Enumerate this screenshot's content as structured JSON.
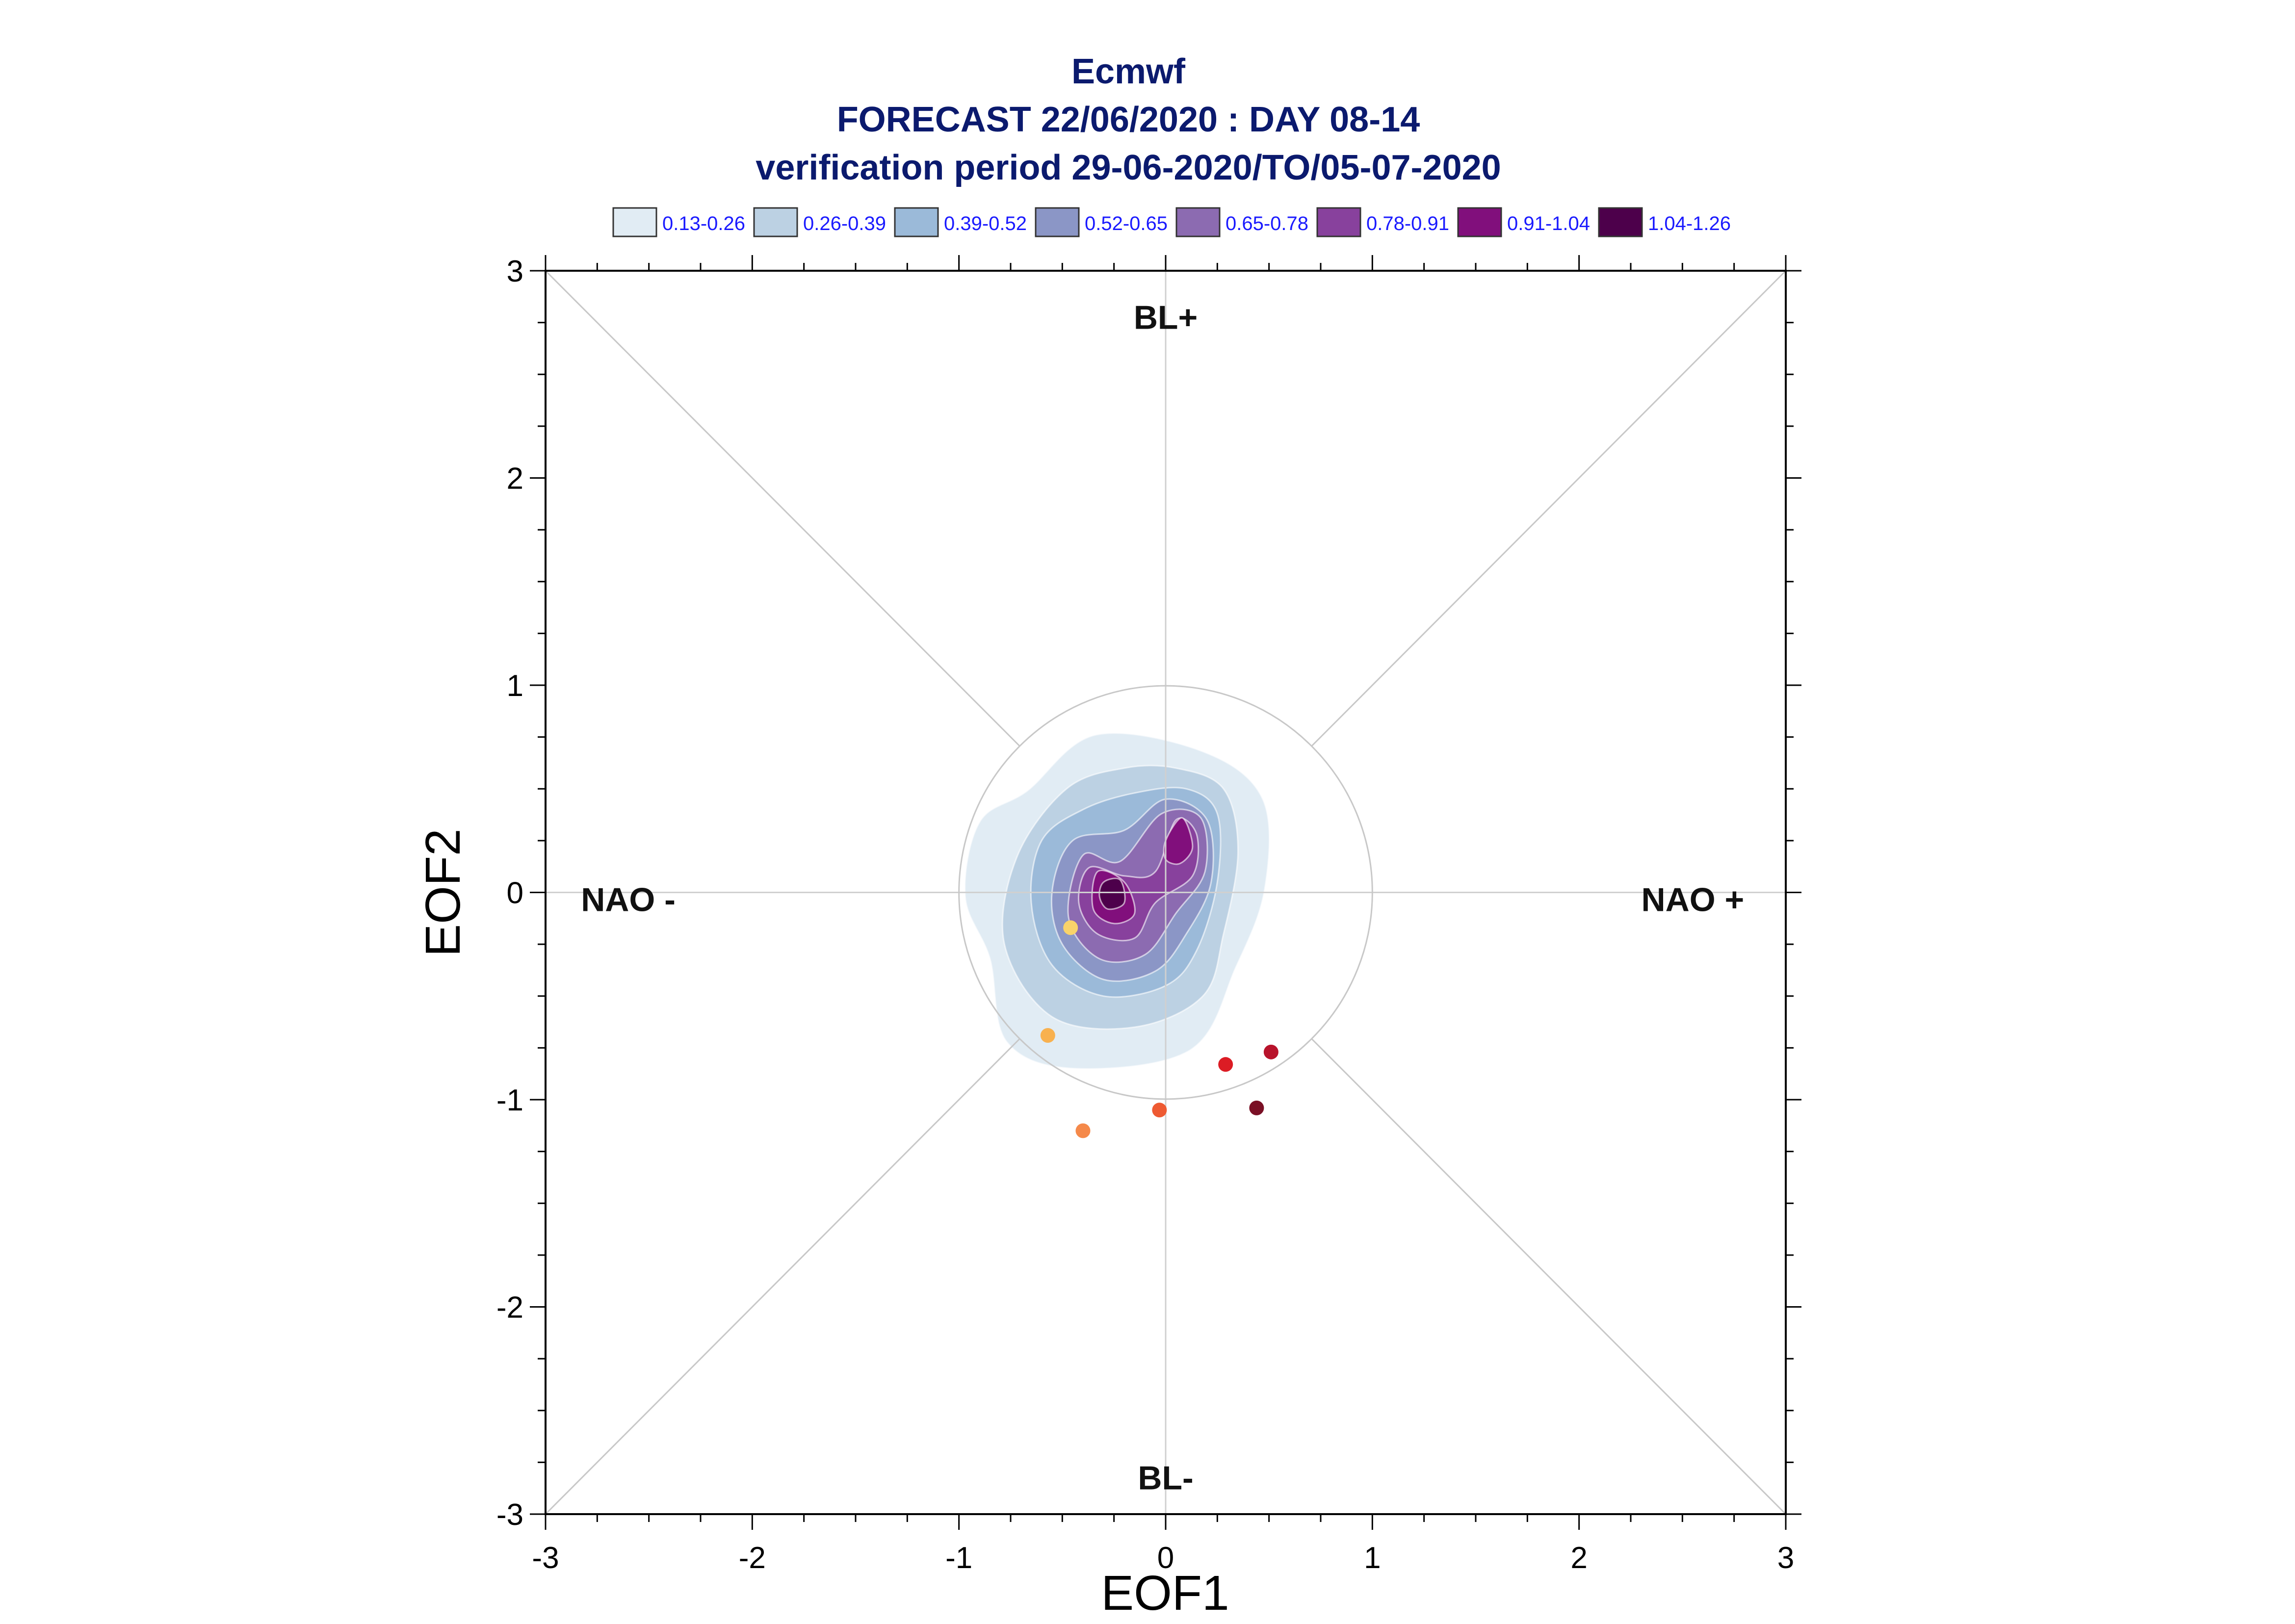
{
  "chart_data": {
    "type": "scatter",
    "title_lines": [
      "Ecmwf",
      "FORECAST 22/06/2020 : DAY 08-14",
      "verification period 29-06-2020/TO/05-07-2020"
    ],
    "xlabel": "EOF1",
    "ylabel": "EOF2",
    "xlim": [
      -3,
      3
    ],
    "ylim": [
      -3,
      3
    ],
    "xticks": [
      -3,
      -2,
      -1,
      0,
      1,
      2,
      3
    ],
    "yticks": [
      -3,
      -2,
      -1,
      0,
      1,
      2,
      3
    ],
    "xtick_labels": [
      "-3",
      "-2",
      "-1",
      "0",
      "1",
      "2",
      "3"
    ],
    "ytick_labels": [
      "-3",
      "-2",
      "-1",
      "0",
      "1",
      "2",
      "3"
    ],
    "regime_labels": [
      {
        "text": "BL+",
        "x": 0.0,
        "y": 2.72
      },
      {
        "text": "BL-",
        "x": 0.0,
        "y": -2.88
      },
      {
        "text": "NAO -",
        "x": -2.6,
        "y": -0.09
      },
      {
        "text": "NAO +",
        "x": 2.55,
        "y": -0.09
      }
    ],
    "reference_circle_radius": 1.0,
    "legend": {
      "placement": "top",
      "entries": [
        {
          "label": "0.13-0.26",
          "color": "#e1ecf4"
        },
        {
          "label": "0.26-0.39",
          "color": "#bcd1e3"
        },
        {
          "label": "0.39-0.52",
          "color": "#9bbad9"
        },
        {
          "label": "0.52-0.65",
          "color": "#8b96c6"
        },
        {
          "label": "0.65-0.78",
          "color": "#8c6bb1"
        },
        {
          "label": "0.78-0.91",
          "color": "#88419d"
        },
        {
          "label": "0.91-1.04",
          "color": "#810f7c"
        },
        {
          "label": "1.04-1.26",
          "color": "#4d004b"
        }
      ]
    },
    "density_contours": [
      {
        "level": "0.13-0.26",
        "color": "#e1ecf4",
        "points": [
          [
            -0.67,
            0.49
          ],
          [
            -0.34,
            0.76
          ],
          [
            0.18,
            0.68
          ],
          [
            0.47,
            0.45
          ],
          [
            0.48,
            0.02
          ],
          [
            0.34,
            -0.36
          ],
          [
            0.12,
            -0.76
          ],
          [
            -0.44,
            -0.85
          ],
          [
            -0.77,
            -0.72
          ],
          [
            -0.85,
            -0.32
          ],
          [
            -0.97,
            -0.02
          ],
          [
            -0.9,
            0.34
          ]
        ]
      },
      {
        "level": "0.26-0.39",
        "color": "#bcd1e3",
        "points": [
          [
            -0.72,
            0.17
          ],
          [
            -0.48,
            0.5
          ],
          [
            -0.2,
            0.6
          ],
          [
            0.05,
            0.6
          ],
          [
            0.28,
            0.5
          ],
          [
            0.35,
            0.2
          ],
          [
            0.28,
            -0.2
          ],
          [
            0.18,
            -0.5
          ],
          [
            -0.15,
            -0.65
          ],
          [
            -0.55,
            -0.6
          ],
          [
            -0.78,
            -0.25
          ]
        ]
      },
      {
        "level": "0.39-0.52",
        "color": "#9bbad9",
        "points": [
          [
            -0.6,
            0.25
          ],
          [
            -0.4,
            0.4
          ],
          [
            -0.15,
            0.48
          ],
          [
            0.1,
            0.5
          ],
          [
            0.25,
            0.38
          ],
          [
            0.25,
            0.05
          ],
          [
            0.15,
            -0.28
          ],
          [
            0.0,
            -0.45
          ],
          [
            -0.3,
            -0.5
          ],
          [
            -0.55,
            -0.35
          ],
          [
            -0.65,
            -0.05
          ]
        ]
      },
      {
        "level": "0.52-0.65",
        "color": "#8b96c6",
        "points": [
          [
            -0.45,
            0.25
          ],
          [
            -0.2,
            0.3
          ],
          [
            0.0,
            0.45
          ],
          [
            0.2,
            0.35
          ],
          [
            0.22,
            0.05
          ],
          [
            0.1,
            -0.2
          ],
          [
            -0.05,
            -0.38
          ],
          [
            -0.3,
            -0.42
          ],
          [
            -0.5,
            -0.25
          ],
          [
            -0.55,
            0.0
          ]
        ]
      },
      {
        "level": "0.65-0.78",
        "color": "#8c6bb1",
        "points": [
          [
            -0.4,
            0.18
          ],
          [
            -0.22,
            0.15
          ],
          [
            -0.02,
            0.38
          ],
          [
            0.17,
            0.36
          ],
          [
            0.19,
            0.1
          ],
          [
            0.05,
            -0.1
          ],
          [
            -0.1,
            -0.3
          ],
          [
            -0.32,
            -0.32
          ],
          [
            -0.47,
            -0.12
          ]
        ]
      },
      {
        "level": "0.78-0.91",
        "color": "#88419d",
        "points": [
          [
            -0.37,
            0.12
          ],
          [
            -0.2,
            0.08
          ],
          [
            -0.05,
            0.1
          ],
          [
            0.05,
            0.35
          ],
          [
            0.15,
            0.28
          ],
          [
            0.13,
            0.08
          ],
          [
            -0.05,
            -0.05
          ],
          [
            -0.15,
            -0.22
          ],
          [
            -0.33,
            -0.2
          ],
          [
            -0.42,
            -0.05
          ]
        ]
      },
      {
        "level": "0.91-1.04",
        "color": "#810f7c",
        "points": [
          [
            -0.33,
            0.1
          ],
          [
            -0.2,
            0.05
          ],
          [
            -0.15,
            -0.1
          ],
          [
            -0.25,
            -0.15
          ],
          [
            -0.35,
            -0.08
          ]
        ]
      },
      {
        "level": "0.91-1.04",
        "color": "#810f7c",
        "points": [
          [
            0.0,
            0.25
          ],
          [
            0.08,
            0.36
          ],
          [
            0.13,
            0.22
          ],
          [
            0.07,
            0.14
          ],
          [
            0.0,
            0.16
          ]
        ]
      },
      {
        "level": "1.04-1.26",
        "color": "#4d004b",
        "points": [
          [
            -0.3,
            0.05
          ],
          [
            -0.22,
            0.06
          ],
          [
            -0.2,
            -0.05
          ],
          [
            -0.28,
            -0.08
          ],
          [
            -0.32,
            -0.02
          ]
        ]
      }
    ],
    "points": [
      {
        "x": -0.46,
        "y": -0.17,
        "color": "#f9d36a"
      },
      {
        "x": -0.57,
        "y": -0.69,
        "color": "#f8b14f"
      },
      {
        "x": -0.4,
        "y": -1.15,
        "color": "#f5894a"
      },
      {
        "x": -0.03,
        "y": -1.05,
        "color": "#ee5a32"
      },
      {
        "x": 0.29,
        "y": -0.83,
        "color": "#dc1c24"
      },
      {
        "x": 0.51,
        "y": -0.77,
        "color": "#b8132b"
      },
      {
        "x": 0.44,
        "y": -1.04,
        "color": "#7a1025"
      }
    ],
    "grid": false
  }
}
